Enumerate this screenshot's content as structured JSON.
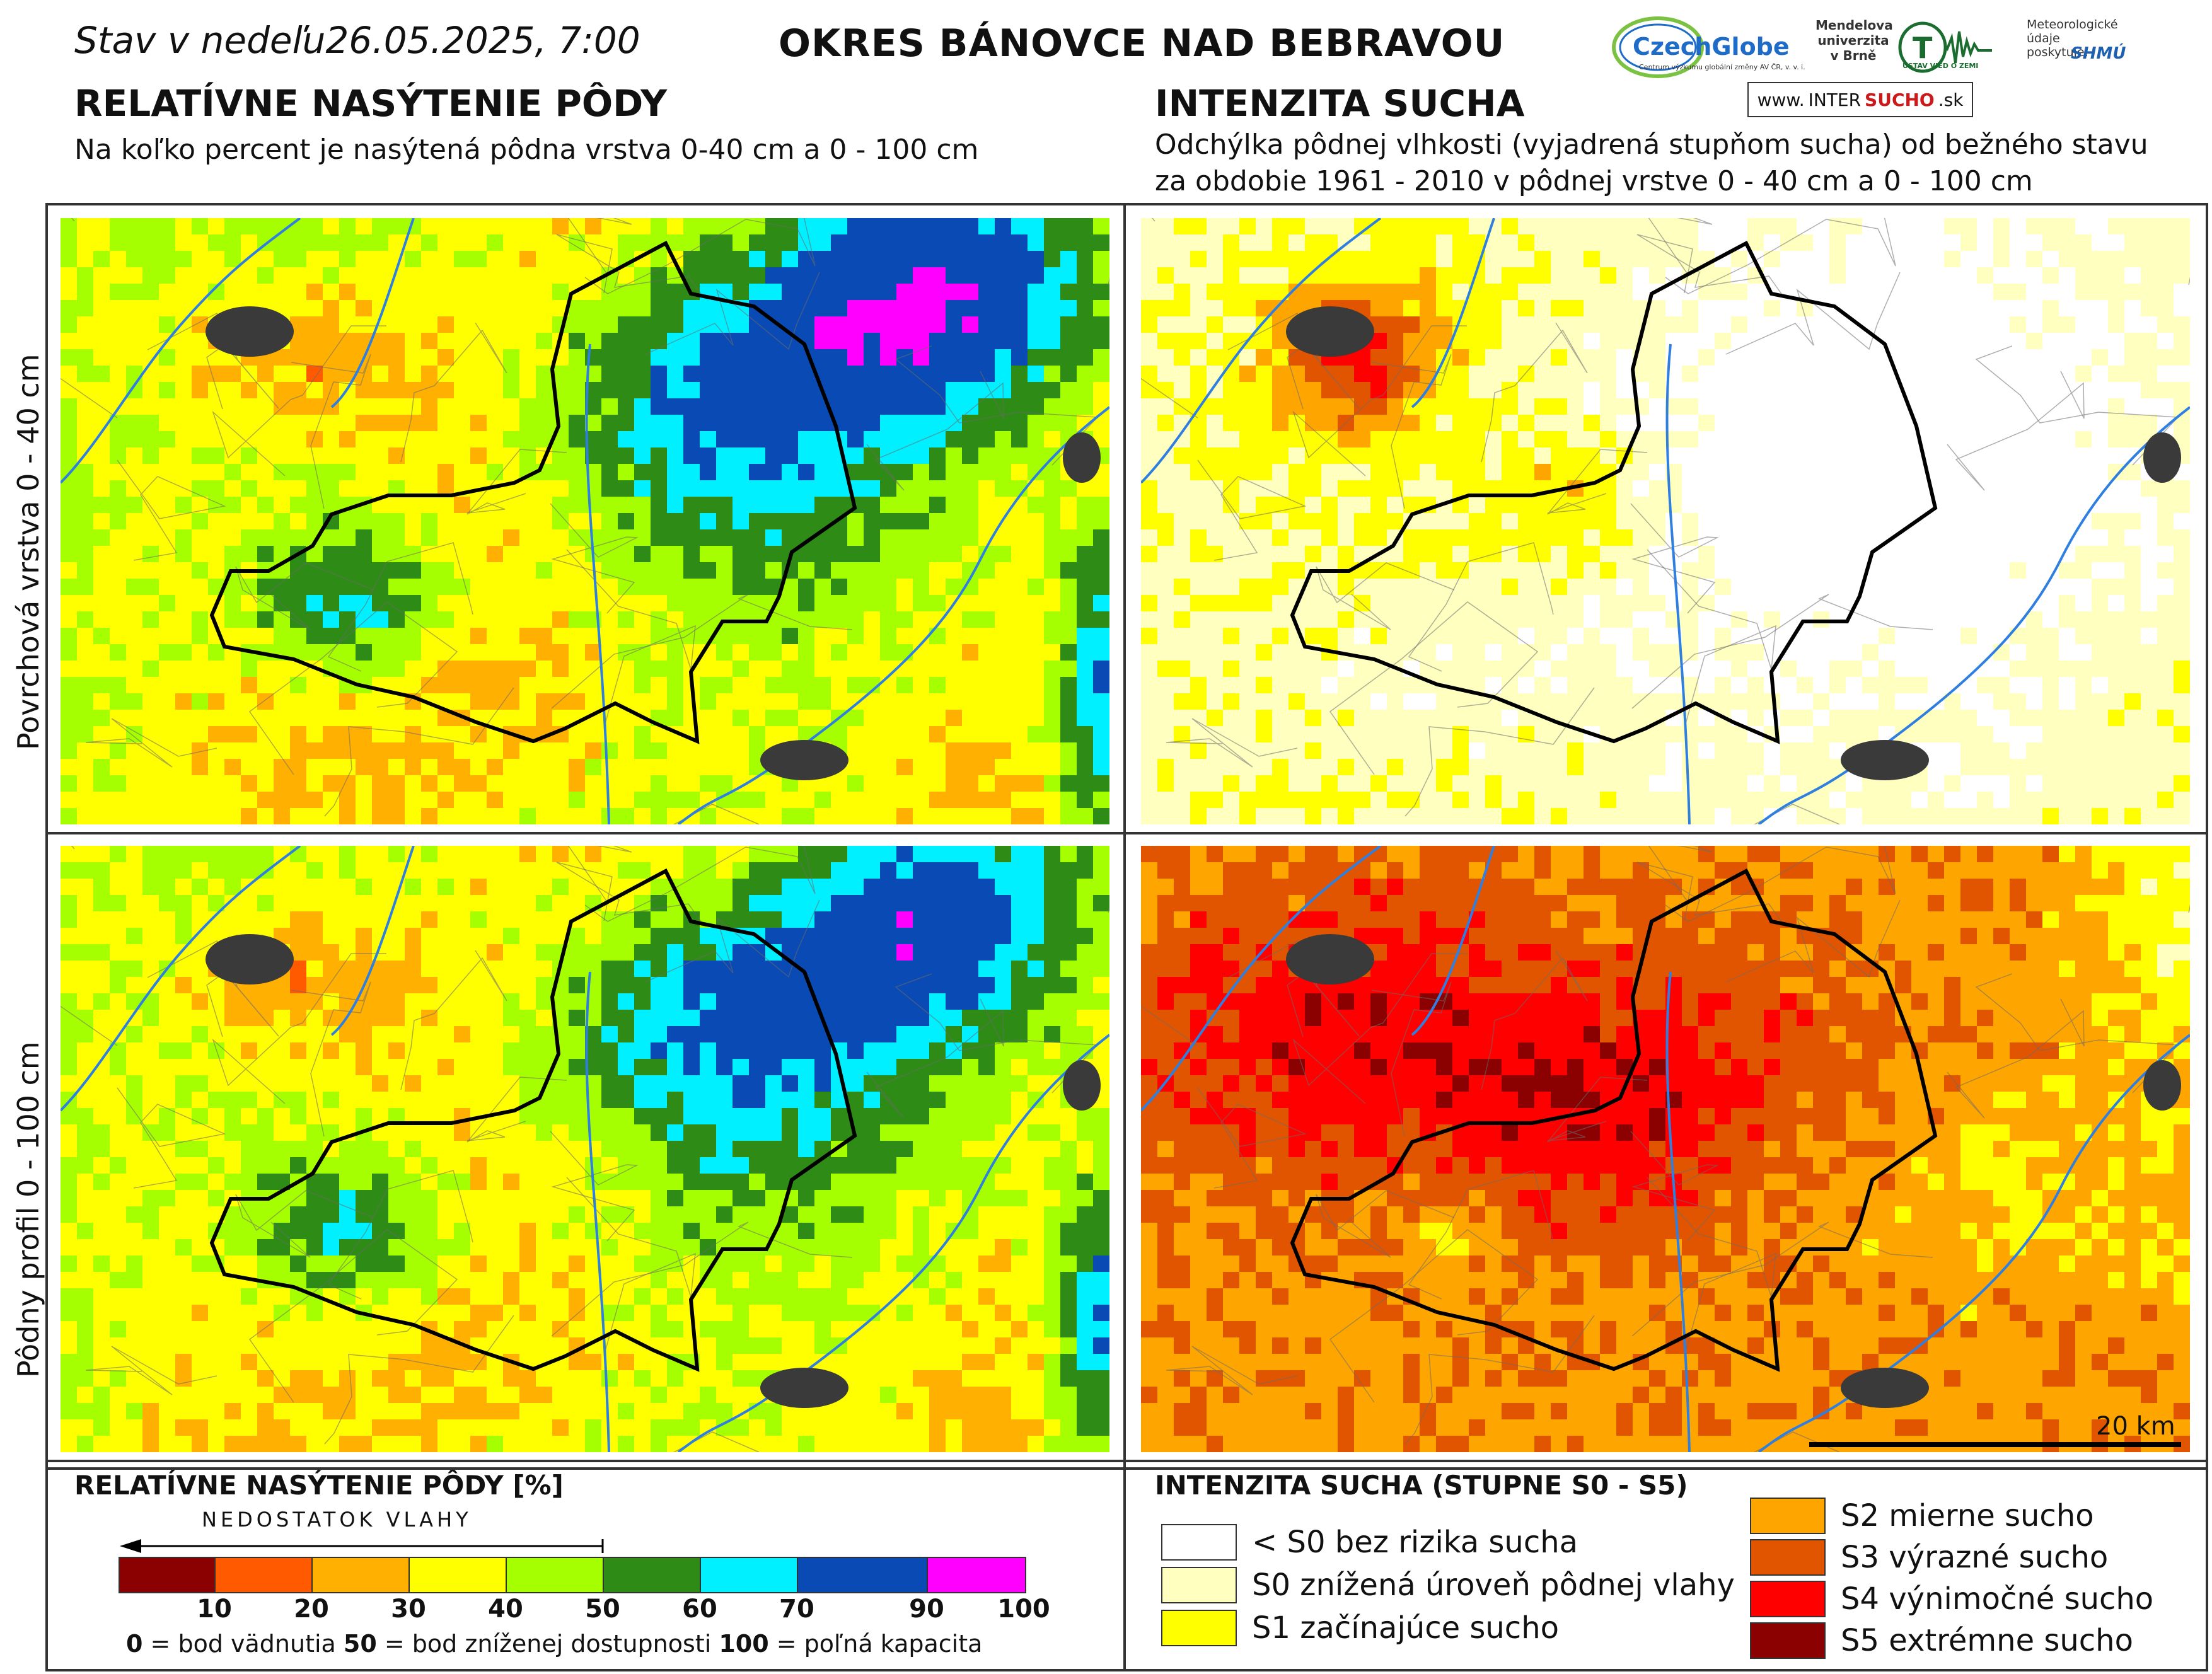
{
  "header": {
    "stav_label": "Stav v nedeľu",
    "stav_datetime": "26.05.2025, 7:00",
    "okres": "OKRES  BÁNOVCE NAD BEBRAVOU",
    "left_title": "RELATÍVNE NASÝTENIE PÔDY",
    "left_subtitle": "Na koľko percent je nasýtená pôdna vrstva 0-40 cm a 0 - 100 cm",
    "right_title": "INTENZITA SUCHA",
    "right_subtitle_1": "Odchýlka pôdnej vlhkosti (vyjadrená stupňom sucha) od bežného stavu",
    "right_subtitle_2": "za obdobie 1961 - 2010 v pôdnej vrstve 0 - 40 cm a 0 - 100 cm"
  },
  "logos": {
    "czechglobe": "CzechGlobe",
    "czechglobe_sub": "Centrum výzkumu globální změny AV ČR, v. v. i.",
    "mendel": "Mendelova univerzita v Brně",
    "ustav": "ÚSTAV VIED O ZEMI",
    "meteo": "Meteorologické údaje poskytuje:",
    "shmu": "SHMÚ",
    "intersucho_pre": "www.",
    "intersucho_main": "INTER",
    "intersucho_bold": "SUCHO",
    "intersucho_post": ".sk"
  },
  "row_labels": {
    "top": "Povrchová vrstva 0 - 40 cm",
    "bottom": "Pôdny profil 0 - 100 cm"
  },
  "legend_left": {
    "title": "RELATÍVNE NASÝTENIE PÔDY [%]",
    "arrow_label": "NEDOSTATOK VLAHY",
    "ticks": [
      "10",
      "20",
      "30",
      "40",
      "50",
      "60",
      "70",
      "90",
      "100"
    ],
    "colors": [
      "#8b0000",
      "#ff5a00",
      "#ffb000",
      "#ffff00",
      "#a6ff00",
      "#2e8b16",
      "#00f0ff",
      "#0a4ab4",
      "#ff00ff"
    ],
    "note_0": "0",
    "note_0_text": " = bod vädnutia  ",
    "note_50": "50",
    "note_50_text": " = bod zníženej dostupnosti  ",
    "note_100": "100",
    "note_100_text": " = poľná kapacita"
  },
  "legend_right": {
    "title": "INTENZITA SUCHA (STUPNE S0 - S5)",
    "items": [
      {
        "label": "< S0 bez rizika sucha",
        "color": "#ffffff"
      },
      {
        "label": "S0 znížená úroveň pôdnej vlahy",
        "color": "#ffffc0"
      },
      {
        "label": "S1 začínajúce sucho",
        "color": "#ffff00"
      },
      {
        "label": "S2 mierne sucho",
        "color": "#ffa500"
      },
      {
        "label": "S3 výrazné sucho",
        "color": "#e25500"
      },
      {
        "label": "S4 výnimočné sucho",
        "color": "#ff0000"
      },
      {
        "label": "S5 extrémne sucho",
        "color": "#8b0000"
      }
    ]
  },
  "scalebar": {
    "label": "20 km"
  }
}
